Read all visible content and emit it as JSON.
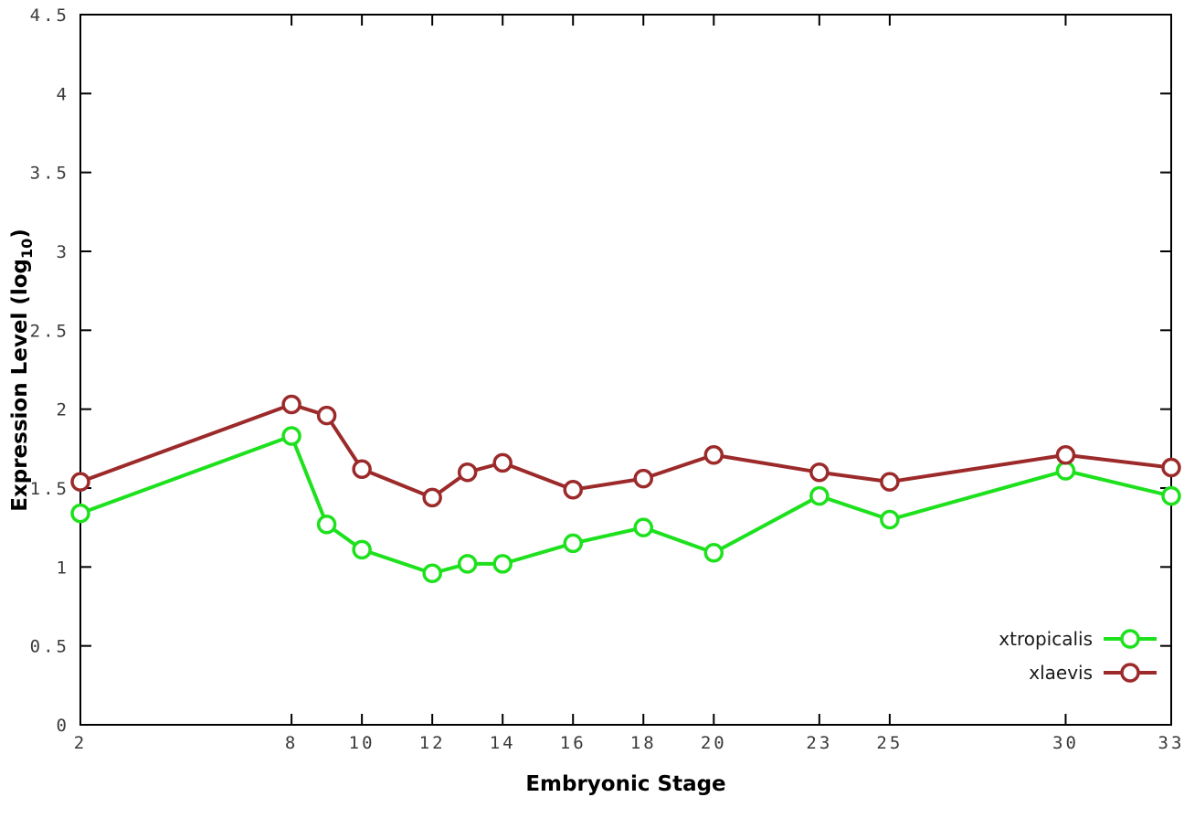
{
  "chart_data": {
    "type": "line",
    "x": [
      2,
      8,
      9,
      10,
      12,
      13,
      14,
      16,
      18,
      20,
      23,
      25,
      30,
      33
    ],
    "series": [
      {
        "name": "xtropicalis",
        "color": "#1de11d",
        "values": [
          1.34,
          1.83,
          1.27,
          1.11,
          0.96,
          1.02,
          1.02,
          1.15,
          1.25,
          1.09,
          1.45,
          1.3,
          1.61,
          1.45
        ]
      },
      {
        "name": "xlaevis",
        "color": "#9c2a2a",
        "values": [
          1.54,
          2.03,
          1.96,
          1.62,
          1.44,
          1.6,
          1.66,
          1.49,
          1.56,
          1.71,
          1.6,
          1.54,
          1.71,
          1.63
        ]
      }
    ],
    "title": "",
    "xlabel": "Embryonic Stage",
    "ylabel": {
      "prefix": "Expression Level (log",
      "sub": "10",
      "suffix": ")"
    },
    "xlim": [
      2,
      33
    ],
    "ylim": [
      0,
      4.5
    ],
    "xticks": [
      {
        "v": 2,
        "label": "2"
      },
      {
        "v": 8,
        "label": "8"
      },
      {
        "v": 10,
        "label": "10"
      },
      {
        "v": 12,
        "label": "12"
      },
      {
        "v": 14,
        "label": "14"
      },
      {
        "v": 16,
        "label": "16"
      },
      {
        "v": 18,
        "label": "18"
      },
      {
        "v": 20,
        "label": "20"
      },
      {
        "v": 23,
        "label": "23"
      },
      {
        "v": 25,
        "label": "25"
      },
      {
        "v": 30,
        "label": "30"
      },
      {
        "v": 33,
        "label": "33"
      }
    ],
    "yticks": [
      {
        "v": 0,
        "label": "0"
      },
      {
        "v": 0.5,
        "label": "0.5"
      },
      {
        "v": 1,
        "label": "1"
      },
      {
        "v": 1.5,
        "label": "1.5"
      },
      {
        "v": 2,
        "label": "2"
      },
      {
        "v": 2.5,
        "label": "2.5"
      },
      {
        "v": 3,
        "label": "3"
      },
      {
        "v": 3.5,
        "label": "3.5"
      },
      {
        "v": 4,
        "label": "4"
      },
      {
        "v": 4.5,
        "label": "4.5"
      }
    ],
    "grid": false,
    "legend": {
      "position": "bottom-right",
      "entries": [
        "xtropicalis",
        "xlaevis"
      ]
    },
    "background": "#ffffff",
    "border_color": "#000000"
  }
}
